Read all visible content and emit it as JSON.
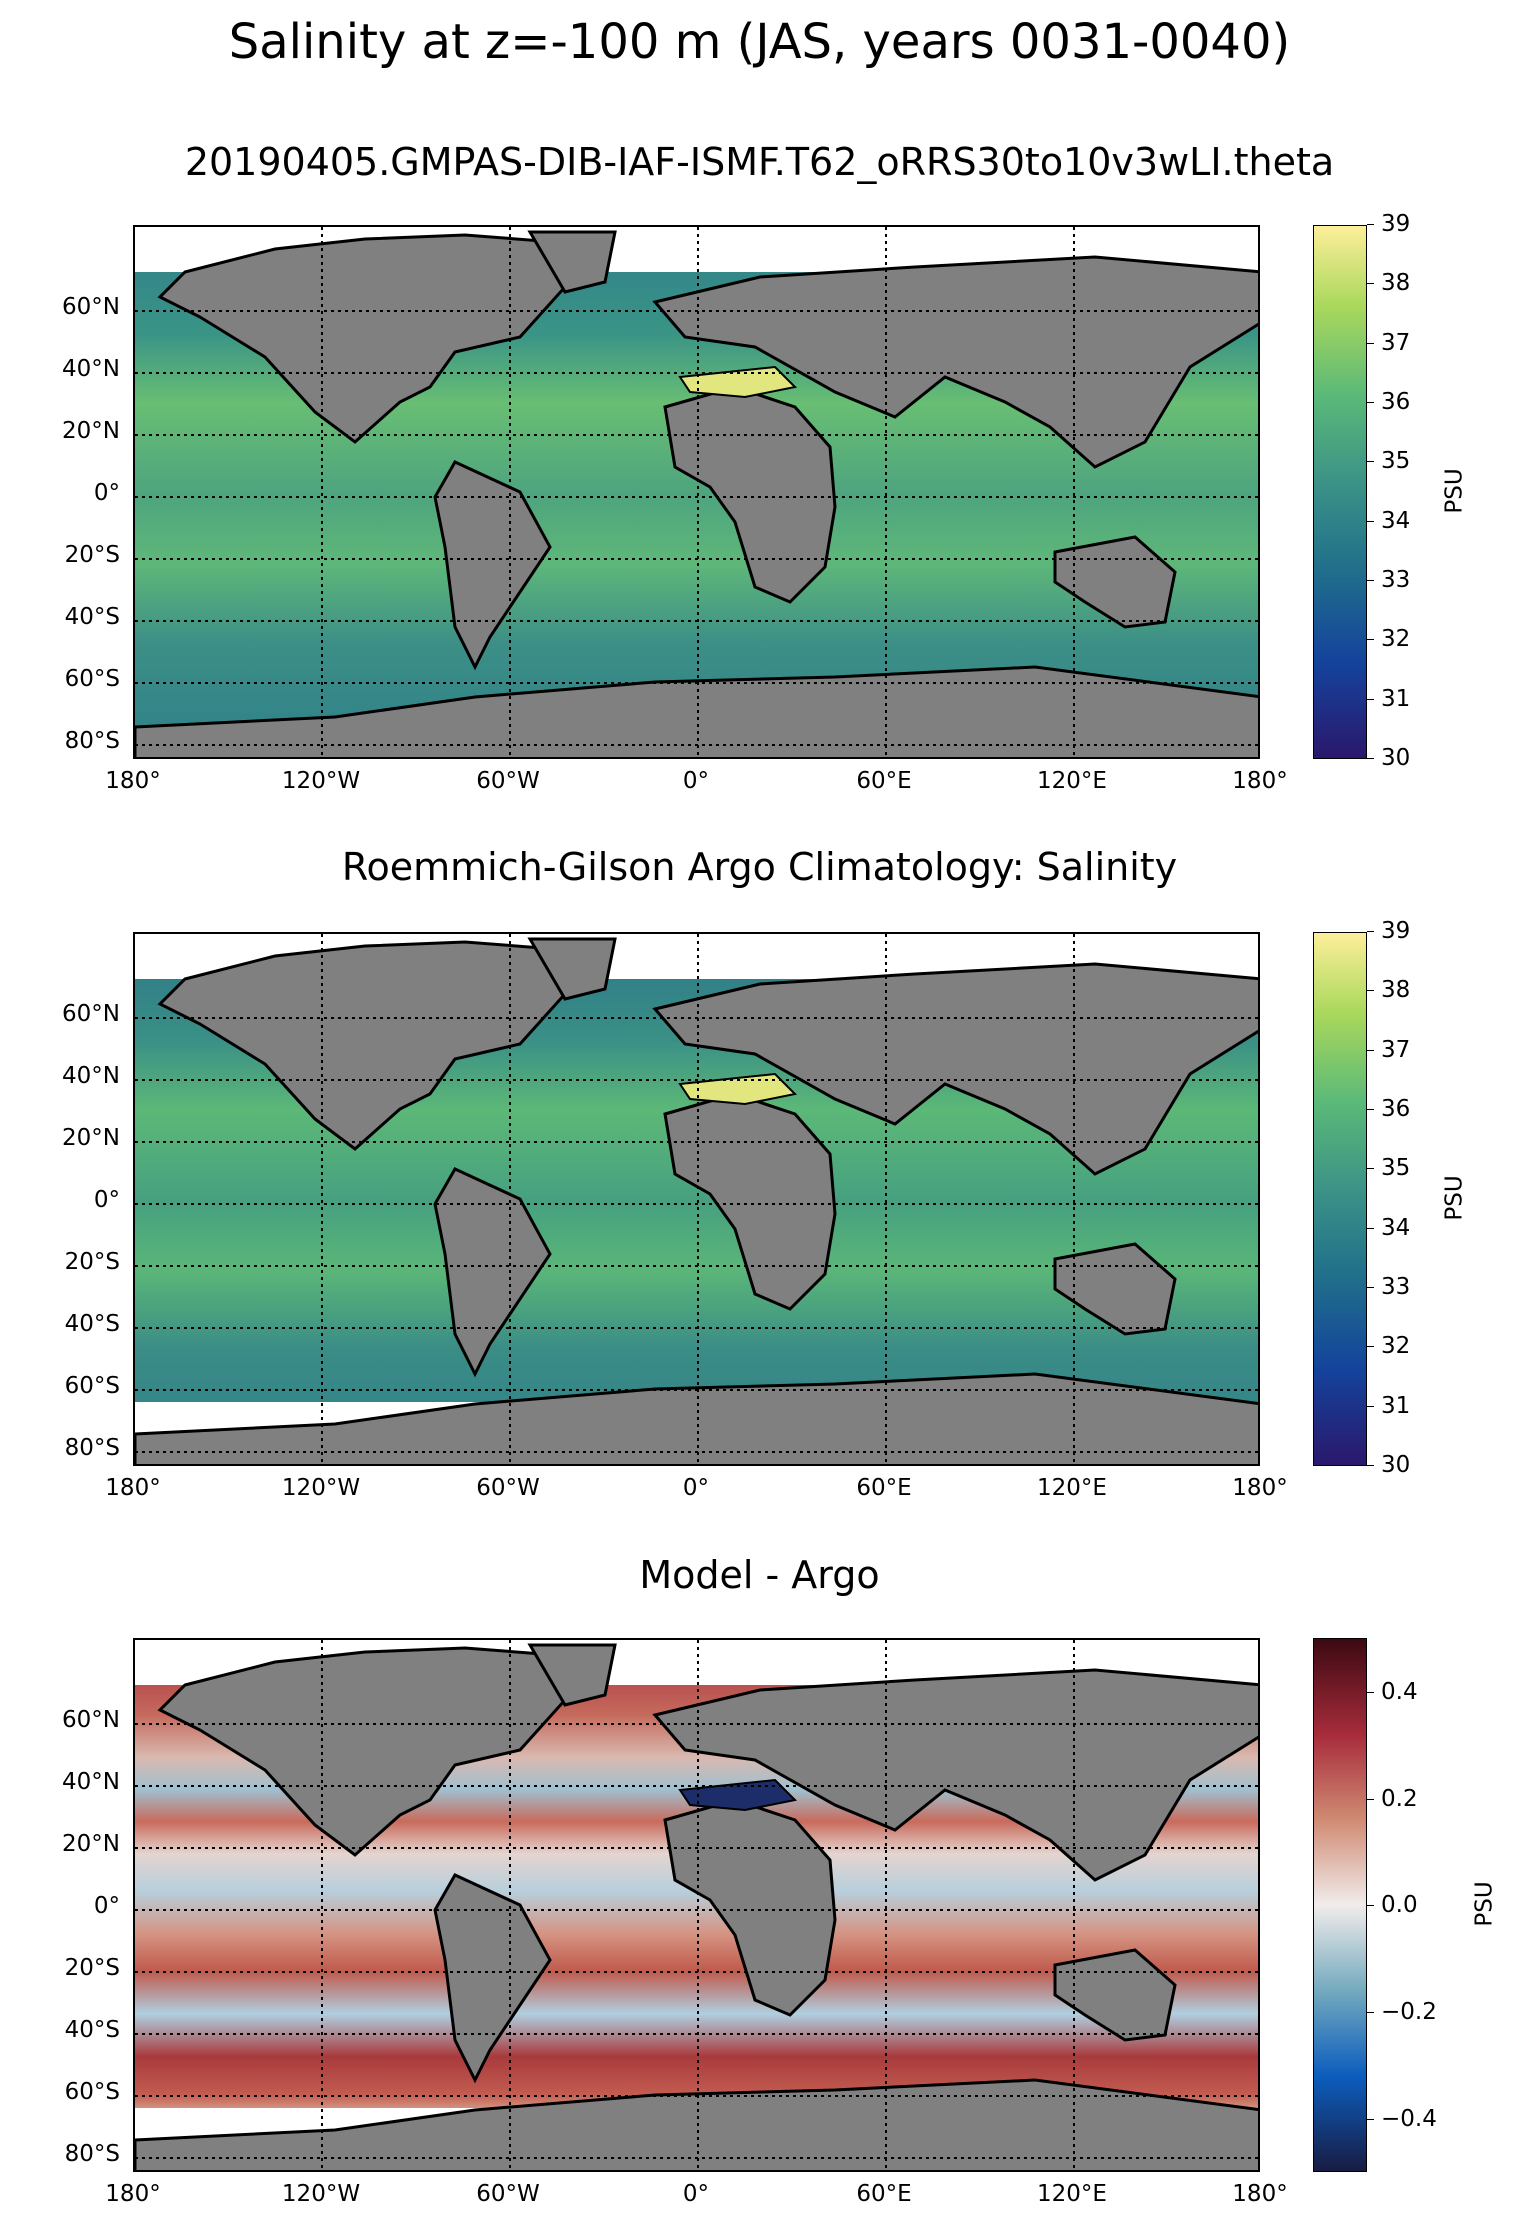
{
  "figure": {
    "suptitle": "Salinity at z=-100 m (JAS, years 0031-0040)"
  },
  "axes_labels": {
    "lat_ticks": [
      "60°N",
      "40°N",
      "20°N",
      "0°",
      "20°S",
      "40°S",
      "60°S",
      "80°S"
    ],
    "lon_ticks": [
      "180°",
      "120°W",
      "60°W",
      "0°",
      "60°E",
      "120°E",
      "180°"
    ]
  },
  "panels": [
    {
      "title": "20190405.GMPAS-DIB-IAF-ISMF.T62_oRRS30to10v3wLI.theta",
      "colorbar": {
        "label": "PSU",
        "ticks": [
          "39",
          "38",
          "37",
          "36",
          "35",
          "34",
          "33",
          "32",
          "31",
          "30"
        ],
        "min": 30,
        "max": 39,
        "colormap": "haline"
      }
    },
    {
      "title": "Roemmich-Gilson Argo Climatology: Salinity",
      "colorbar": {
        "label": "PSU",
        "ticks": [
          "39",
          "38",
          "37",
          "36",
          "35",
          "34",
          "33",
          "32",
          "31",
          "30"
        ],
        "min": 30,
        "max": 39,
        "colormap": "haline"
      }
    },
    {
      "title": "Model - Argo",
      "colorbar": {
        "label": "PSU",
        "ticks": [
          "0.4",
          "0.2",
          "0.0",
          "−0.2",
          "−0.4"
        ],
        "min": -0.5,
        "max": 0.5,
        "colormap": "balance"
      }
    }
  ],
  "colors": {
    "land": "#808080",
    "missing": "#ffffff",
    "haline": [
      "#2a186c",
      "#14439c",
      "#206e8b",
      "#3c9387",
      "#5ab978",
      "#aad85c",
      "#fdef9a"
    ],
    "balance": [
      "#181c43",
      "#0c5ebe",
      "#75aabe",
      "#f1eceb",
      "#d08b73",
      "#a72c3b",
      "#3c0912"
    ]
  }
}
